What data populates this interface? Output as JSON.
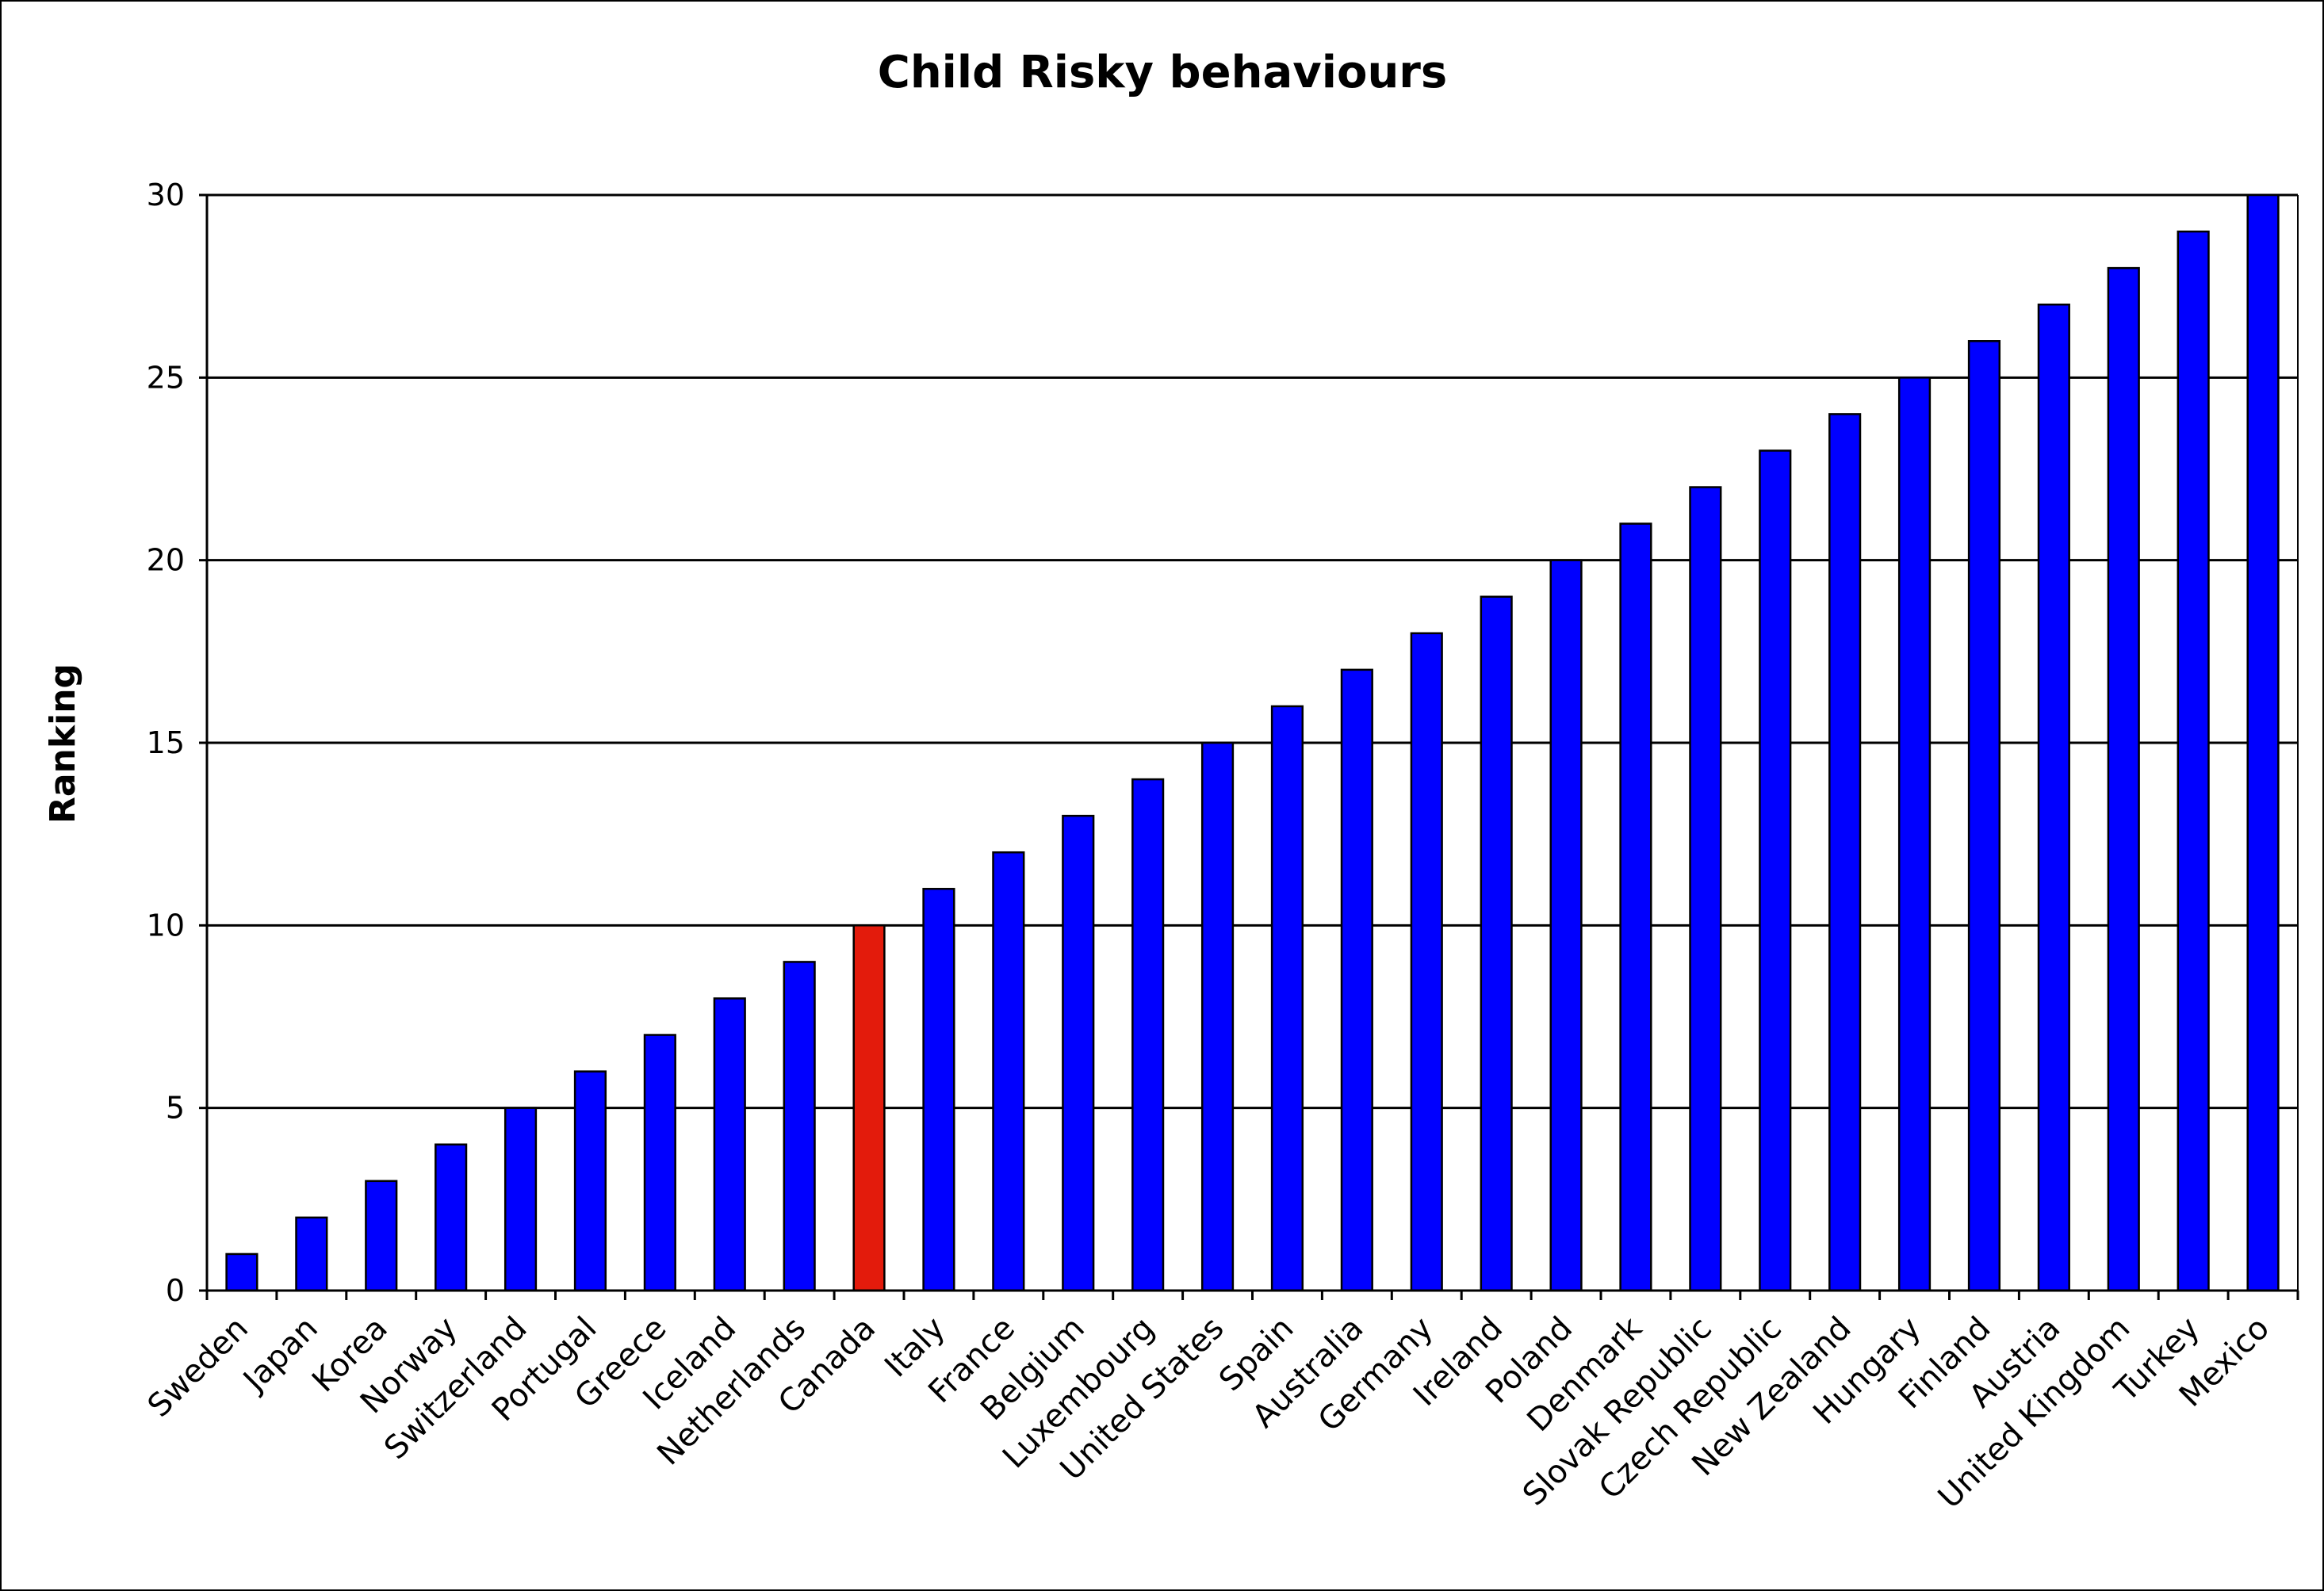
{
  "chart_data": {
    "type": "bar",
    "title": "Child Risky behaviours",
    "xlabel": "",
    "ylabel": "Ranking",
    "ylim": [
      0,
      30
    ],
    "yticks": [
      0,
      5,
      10,
      15,
      20,
      25,
      30
    ],
    "grid": true,
    "legend": "none",
    "default_color": "#0000FF",
    "highlight_color": "#E31B0C",
    "highlight_category": "Canada",
    "categories": [
      "Sweden",
      "Japan",
      "Korea",
      "Norway",
      "Switzerland",
      "Portugal",
      "Greece",
      "Iceland",
      "Netherlands",
      "Canada",
      "Italy",
      "France",
      "Belgium",
      "Luxembourg",
      "United States",
      "Spain",
      "Australia",
      "Germany",
      "Ireland",
      "Poland",
      "Denmark",
      "Slovak Republic",
      "Czech Republic",
      "New Zealand",
      "Hungary",
      "Finland",
      "Austria",
      "United Kingdom",
      "Turkey",
      "Mexico"
    ],
    "values": [
      1,
      2,
      3,
      4,
      5,
      6,
      7,
      8,
      9,
      10,
      11,
      12,
      13,
      14,
      15,
      16,
      17,
      18,
      19,
      20,
      21,
      22,
      23,
      24,
      25,
      26,
      27,
      28,
      29,
      30
    ]
  }
}
